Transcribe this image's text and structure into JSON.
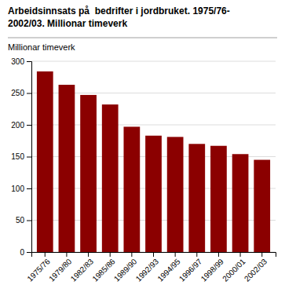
{
  "chart_data": {
    "type": "bar",
    "title": "Arbeidsinnsats på  bedrifter i jordbruket. 1975/76-\n2002/03. Millionar timeverk",
    "ylabel": "Millionar timeverk",
    "categories": [
      "1975/76",
      "1979/80",
      "1982/83",
      "1985/86",
      "1989/90",
      "1992/93",
      "1994/95",
      "1996/97",
      "1998/99",
      "2000/01",
      "2002/03"
    ],
    "values": [
      284,
      263,
      247,
      232,
      197,
      183,
      181,
      170,
      167,
      154,
      145
    ],
    "color": "#8B0000",
    "ylim": [
      0,
      300
    ],
    "yticks": [
      0,
      50,
      100,
      150,
      200,
      250,
      300
    ],
    "grid": true
  }
}
